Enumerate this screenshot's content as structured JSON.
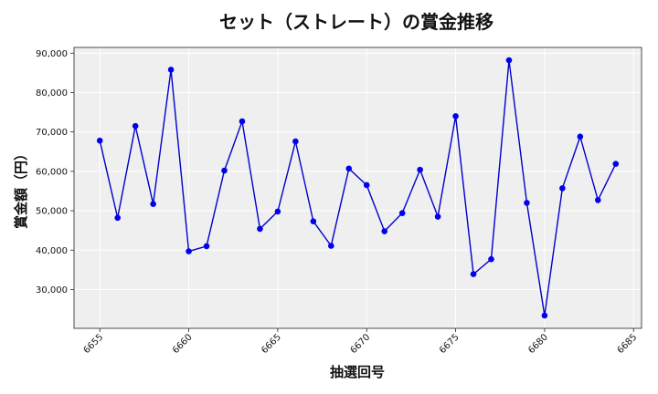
{
  "chart_data": {
    "type": "line",
    "title": "セット（ストレート）の賞金推移",
    "xlabel": "抽選回号",
    "ylabel": "賞金額（円）",
    "x": [
      6655,
      6656,
      6657,
      6658,
      6659,
      6660,
      6661,
      6662,
      6663,
      6664,
      6665,
      6666,
      6667,
      6668,
      6669,
      6670,
      6671,
      6672,
      6673,
      6674,
      6675,
      6676,
      6677,
      6678,
      6679,
      6680,
      6681,
      6682,
      6683,
      6684
    ],
    "y": [
      67800,
      48200,
      71500,
      51700,
      85800,
      39700,
      41000,
      60200,
      72700,
      45400,
      49800,
      67600,
      47300,
      41100,
      60700,
      56500,
      44800,
      49400,
      60400,
      48500,
      74000,
      33900,
      37700,
      88200,
      52000,
      23400,
      55700,
      68800,
      52700,
      61900
    ],
    "xlim": [
      6653.55,
      6685.45
    ],
    "ylim": [
      20150,
      91450
    ],
    "xticks": [
      6655,
      6660,
      6665,
      6670,
      6675,
      6680,
      6685
    ],
    "yticks": [
      30000,
      40000,
      50000,
      60000,
      70000,
      80000,
      90000
    ],
    "xtick_labels": [
      "6655",
      "6660",
      "6665",
      "6670",
      "6675",
      "6680",
      "6685"
    ],
    "ytick_labels": [
      "30,000",
      "40,000",
      "50,000",
      "60,000",
      "70,000",
      "80,000",
      "90,000"
    ],
    "grid": true,
    "line_color": "#0000cc",
    "marker_color": "#0000ee",
    "plot_bg": "#efefef"
  }
}
